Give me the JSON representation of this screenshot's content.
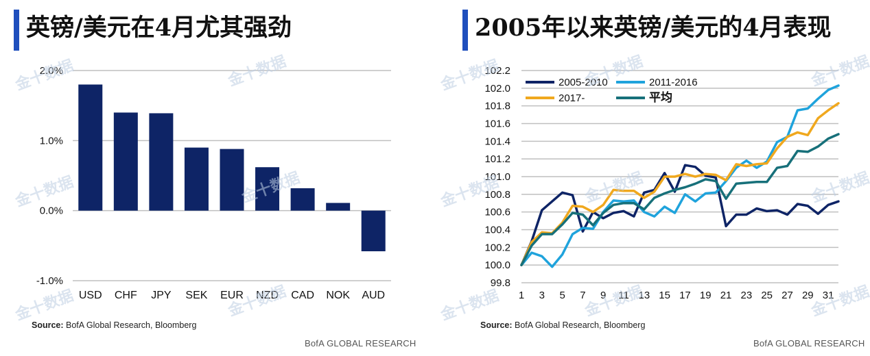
{
  "colors": {
    "accent": "#1f4fbd",
    "bar": "#0e2466",
    "grid": "#bfbfbf",
    "series": [
      "#0e2466",
      "#1fa3dc",
      "#f0a81e",
      "#17707a"
    ]
  },
  "watermark": "金十数据",
  "left": {
    "title": "英镑/美元在4月尤其强劲",
    "source_label": "Source:",
    "source_text": " BofA Global Research, Bloomberg",
    "footer": "BofA GLOBAL RESEARCH"
  },
  "right": {
    "title": "2005年以来英镑/美元的4月表现",
    "source_label": "Source:",
    "source_text": " BofA Global Research, Bloomberg",
    "footer": "BofA GLOBAL RESEARCH"
  },
  "chart_data": [
    {
      "type": "bar",
      "title": "英镑/美元在4月尤其强劲",
      "categories": [
        "USD",
        "CHF",
        "JPY",
        "SEK",
        "EUR",
        "NZD",
        "CAD",
        "NOK",
        "AUD"
      ],
      "values": [
        1.8,
        1.4,
        1.39,
        0.9,
        0.88,
        0.62,
        0.32,
        0.11,
        -0.58
      ],
      "ylim": [
        -1.0,
        2.0
      ],
      "yticks": [
        "2.0%",
        "1.0%",
        "0.0%",
        "-1.0%"
      ],
      "grid": true
    },
    {
      "type": "line",
      "title": "2005年以来英镑/美元的4月表现",
      "x": [
        1,
        2,
        3,
        4,
        5,
        6,
        7,
        8,
        9,
        10,
        11,
        12,
        13,
        14,
        15,
        16,
        17,
        18,
        19,
        20,
        21,
        22,
        23,
        24,
        25,
        26,
        27,
        28,
        29,
        30,
        31,
        32
      ],
      "xticks": [
        "1",
        "3",
        "5",
        "7",
        "9",
        "11",
        "13",
        "15",
        "17",
        "19",
        "21",
        "23",
        "25",
        "27",
        "29",
        "31"
      ],
      "ylim": [
        99.8,
        102.2
      ],
      "yticks": [
        "102.2",
        "102.0",
        "101.8",
        "101.6",
        "101.4",
        "101.2",
        "101.0",
        "100.8",
        "100.6",
        "100.4",
        "100.2",
        "100.0",
        "99.8"
      ],
      "legend_position": "top-left",
      "grid": true,
      "series": [
        {
          "name": "2005-2010",
          "values": [
            100.0,
            100.27,
            100.62,
            100.72,
            100.82,
            100.79,
            100.38,
            100.6,
            100.53,
            100.59,
            100.61,
            100.55,
            100.82,
            100.85,
            101.04,
            100.83,
            101.13,
            101.11,
            101.01,
            100.99,
            100.44,
            100.57,
            100.57,
            100.64,
            100.61,
            100.62,
            100.57,
            100.69,
            100.67,
            100.58,
            100.68,
            100.72
          ]
        },
        {
          "name": "2011-2016",
          "values": [
            100.0,
            100.14,
            100.1,
            99.98,
            100.12,
            100.35,
            100.42,
            100.41,
            100.6,
            100.73,
            100.72,
            100.73,
            100.6,
            100.55,
            100.66,
            100.59,
            100.8,
            100.72,
            100.81,
            100.82,
            100.95,
            101.1,
            101.18,
            101.1,
            101.17,
            101.39,
            101.45,
            101.75,
            101.77,
            101.88,
            101.98,
            102.03
          ]
        },
        {
          "name": "2017-",
          "values": [
            100.0,
            100.26,
            100.37,
            100.36,
            100.48,
            100.67,
            100.66,
            100.6,
            100.68,
            100.85,
            100.84,
            100.84,
            100.76,
            100.83,
            101.0,
            101.0,
            101.03,
            101.0,
            101.03,
            101.02,
            100.96,
            101.14,
            101.12,
            101.14,
            101.15,
            101.32,
            101.45,
            101.5,
            101.47,
            101.66,
            101.75,
            101.83
          ]
        },
        {
          "name": "平均",
          "values": [
            100.0,
            100.22,
            100.35,
            100.35,
            100.46,
            100.59,
            100.57,
            100.45,
            100.59,
            100.68,
            100.7,
            100.7,
            100.63,
            100.76,
            100.81,
            100.85,
            100.88,
            100.92,
            100.97,
            100.95,
            100.75,
            100.92,
            100.93,
            100.94,
            100.94,
            101.1,
            101.12,
            101.29,
            101.28,
            101.34,
            101.43,
            101.48
          ]
        }
      ]
    }
  ]
}
